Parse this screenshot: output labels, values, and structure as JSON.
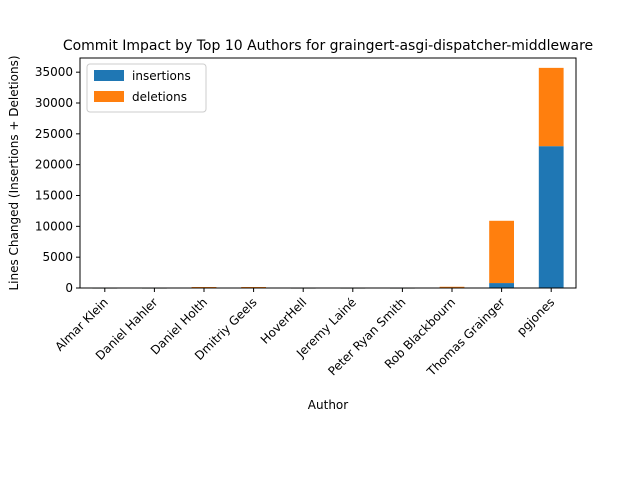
{
  "chart_data": {
    "type": "bar",
    "stacked": true,
    "title": "Commit Impact by Top 10 Authors for graingert-asgi-dispatcher-middleware",
    "xlabel": "Author",
    "ylabel": "Lines Changed (Insertions + Deletions)",
    "categories": [
      "Almar Klein",
      "Daniel Hahler",
      "Daniel Holth",
      "Dmitriy Geels",
      "HoverHell",
      "Jeremy Lainé",
      "Peter Ryan Smith",
      "Rob Blackbourn",
      "Thomas Grainger",
      "pgjones"
    ],
    "series": [
      {
        "name": "insertions",
        "color": "#1f77b4",
        "values": [
          5,
          5,
          30,
          60,
          5,
          5,
          5,
          50,
          800,
          23000
        ]
      },
      {
        "name": "deletions",
        "color": "#ff7f0e",
        "values": [
          5,
          5,
          130,
          100,
          5,
          5,
          5,
          150,
          10100,
          12700
        ]
      }
    ],
    "ylim": [
      0,
      37300
    ],
    "yticks": [
      0,
      5000,
      10000,
      15000,
      20000,
      25000,
      30000,
      35000
    ],
    "legend_position": "top-left",
    "grid": false
  }
}
